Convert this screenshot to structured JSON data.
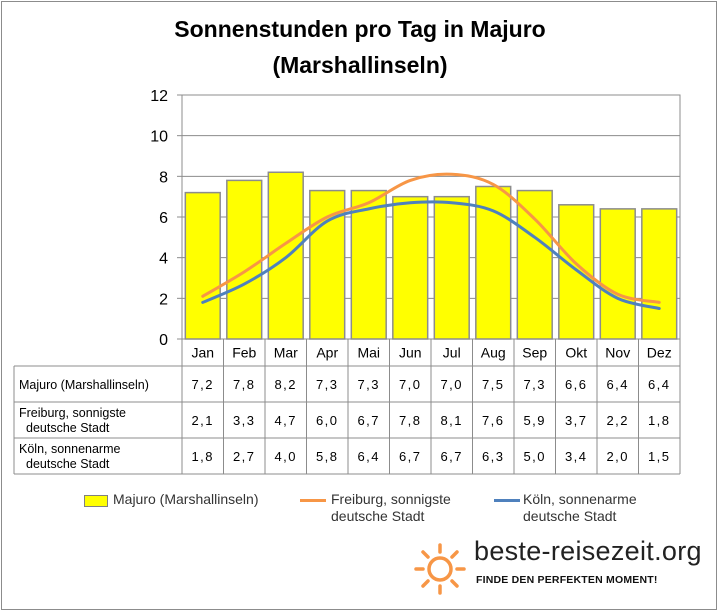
{
  "chart_data": {
    "type": "bar",
    "title_line1": "Sonnenstunden pro Tag in Majuro",
    "title_line2": "(Marshallinseln)",
    "categories": [
      "Jan",
      "Feb",
      "Mar",
      "Apr",
      "Mai",
      "Jun",
      "Jul",
      "Aug",
      "Sep",
      "Okt",
      "Nov",
      "Dez"
    ],
    "ylim": [
      0,
      12
    ],
    "yticks": [
      "0",
      "2",
      "4",
      "6",
      "8",
      "10",
      "12"
    ],
    "grid": true,
    "series": [
      {
        "name": "Majuro (Marshallinseln)",
        "kind": "bar",
        "color": "#ffff00",
        "values": [
          7.2,
          7.8,
          8.2,
          7.3,
          7.3,
          7.0,
          7.0,
          7.5,
          7.3,
          6.6,
          6.4,
          6.4
        ],
        "labels": [
          "7,2",
          "7,8",
          "8,2",
          "7,3",
          "7,3",
          "7,0",
          "7,0",
          "7,5",
          "7,3",
          "6,6",
          "6,4",
          "6,4"
        ]
      },
      {
        "name": "Freiburg, sonnigste deutsche Stadt",
        "kind": "line",
        "color": "#f79646",
        "values": [
          2.1,
          3.3,
          4.7,
          6.0,
          6.7,
          7.8,
          8.1,
          7.6,
          5.9,
          3.7,
          2.2,
          1.8
        ],
        "labels": [
          "2,1",
          "3,3",
          "4,7",
          "6,0",
          "6,7",
          "7,8",
          "8,1",
          "7,6",
          "5,9",
          "3,7",
          "2,2",
          "1,8"
        ]
      },
      {
        "name": "Köln, sonnenarme deutsche Stadt",
        "kind": "line",
        "color": "#4f81bd",
        "values": [
          1.8,
          2.7,
          4.0,
          5.8,
          6.4,
          6.7,
          6.7,
          6.3,
          5.0,
          3.4,
          2.0,
          1.5
        ],
        "labels": [
          "1,8",
          "2,7",
          "4,0",
          "5,8",
          "6,4",
          "6,7",
          "6,7",
          "6,3",
          "5,0",
          "3,4",
          "2,0",
          "1,5"
        ]
      }
    ],
    "table_row_labels": [
      [
        "Majuro (Marshallinseln)"
      ],
      [
        "Freiburg, sonnigste",
        "deutsche Stadt"
      ],
      [
        "Köln, sonnenarme",
        "deutsche Stadt"
      ]
    ],
    "legend": {
      "position": "bottom",
      "bar_label": "Majuro (Marshallinseln)",
      "freiburg_line1": "Freiburg, sonnigste",
      "freiburg_line2": "deutsche Stadt",
      "koeln_line1": "Köln, sonnenarme",
      "koeln_line2": "deutsche Stadt"
    }
  },
  "branding": {
    "site": "beste-reisezeit.org",
    "tagline": "FINDE DEN PERFEKTEN MOMENT!",
    "sun_color": "#f79646"
  }
}
